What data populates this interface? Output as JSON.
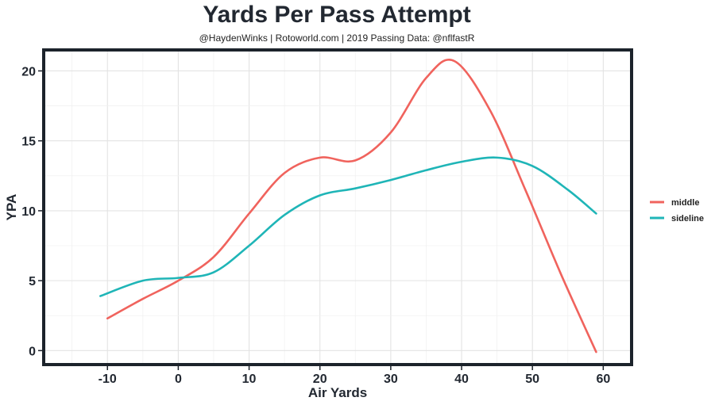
{
  "chart_data": {
    "type": "line",
    "title": "Yards Per Pass Attempt",
    "subtitle": "@HaydenWinks | Rotoworld.com | 2019 Passing Data: @nflfastR",
    "xlabel": "Air Yards",
    "ylabel": "YPA",
    "xlim": [
      -19,
      64
    ],
    "ylim": [
      -1,
      21.5
    ],
    "xticks": [
      -10,
      0,
      10,
      20,
      30,
      40,
      50,
      60
    ],
    "yticks": [
      0,
      5,
      10,
      15,
      20
    ],
    "grid": true,
    "legend_position": "right",
    "series": [
      {
        "name": "middle",
        "color": "#f0635d",
        "x": [
          -10,
          -5,
          0,
          5,
          10,
          15,
          20,
          25,
          30,
          35,
          39,
          44,
          49,
          54,
          59
        ],
        "y": [
          2.3,
          3.7,
          5.0,
          6.7,
          9.8,
          12.7,
          13.8,
          13.6,
          15.6,
          19.5,
          20.7,
          17.2,
          11.5,
          5.5,
          -0.1
        ]
      },
      {
        "name": "sideline",
        "color": "#1fb5b7",
        "x": [
          -11,
          -5,
          0,
          5,
          10,
          15,
          20,
          25,
          30,
          35,
          40,
          45,
          50,
          55,
          59
        ],
        "y": [
          3.9,
          5.0,
          5.2,
          5.6,
          7.5,
          9.7,
          11.1,
          11.6,
          12.2,
          12.9,
          13.5,
          13.8,
          13.2,
          11.5,
          9.8
        ]
      }
    ]
  }
}
